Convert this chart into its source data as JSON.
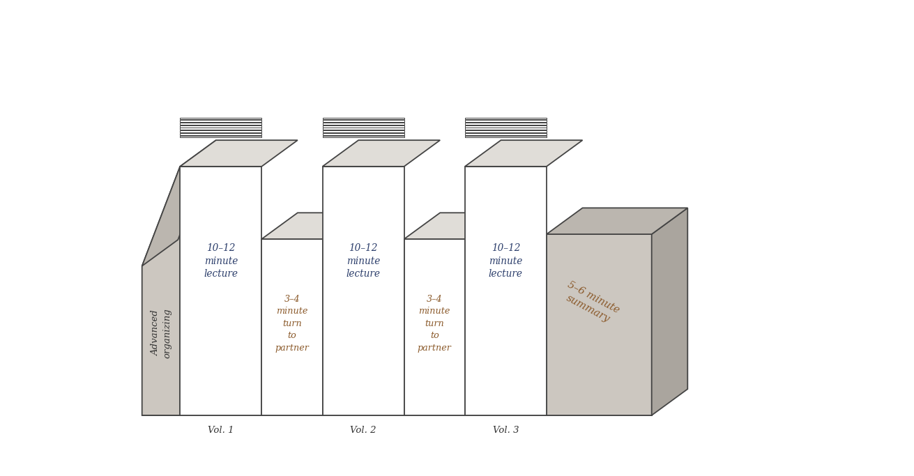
{
  "bg_color": "#ffffff",
  "book_face_color": "#ffffff",
  "bookend_color": "#ccc7c0",
  "bookend_top_color": "#bbb6af",
  "bookend_side_color": "#aaa59e",
  "book_top_color": "#e0ddd8",
  "outline_color": "#444444",
  "text_color_dark": "#2c3e6b",
  "text_color_orange": "#8B5a2b",
  "text_color_black": "#333333",
  "font_family": "serif",
  "books": [
    {
      "label": "Vol. 1",
      "spine_text": "10–12\nminute\nlecture",
      "type": "lecture"
    },
    {
      "label": "",
      "spine_text": "3–4\nminute\nturn\nto\npartner",
      "type": "partner"
    },
    {
      "label": "Vol. 2",
      "spine_text": "10–12\nminute\nlecture",
      "type": "lecture"
    },
    {
      "label": "",
      "spine_text": "3–4\nminute\nturn\nto\npartner",
      "type": "partner"
    },
    {
      "label": "Vol. 3",
      "spine_text": "10–12\nminute\nlecture",
      "type": "lecture"
    }
  ],
  "left_bookend_text": "Advanced\norganizing",
  "right_bookend_text": "5–6 minute\nsummary",
  "lw": 1.3
}
